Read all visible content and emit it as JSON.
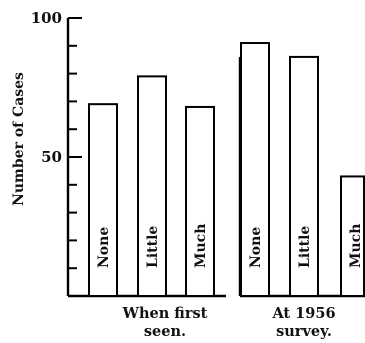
{
  "chart_data": {
    "type": "bar",
    "ylabel": "Number of Cases",
    "ylim": [
      0,
      100
    ],
    "y_ticks_labeled": [
      50,
      100
    ],
    "y_minor_tick_step": 10,
    "groups": [
      {
        "label_lines": [
          "When first",
          "seen."
        ],
        "bars": [
          {
            "label": "None",
            "value": 69
          },
          {
            "label": "Little",
            "value": 79
          },
          {
            "label": "Much",
            "value": 68
          }
        ]
      },
      {
        "label_lines": [
          "At 1956",
          "survey."
        ],
        "bars": [
          {
            "label": "None",
            "value": 91
          },
          {
            "label": "Little",
            "value": 86
          },
          {
            "label": "Much",
            "value": 43
          }
        ]
      }
    ]
  }
}
